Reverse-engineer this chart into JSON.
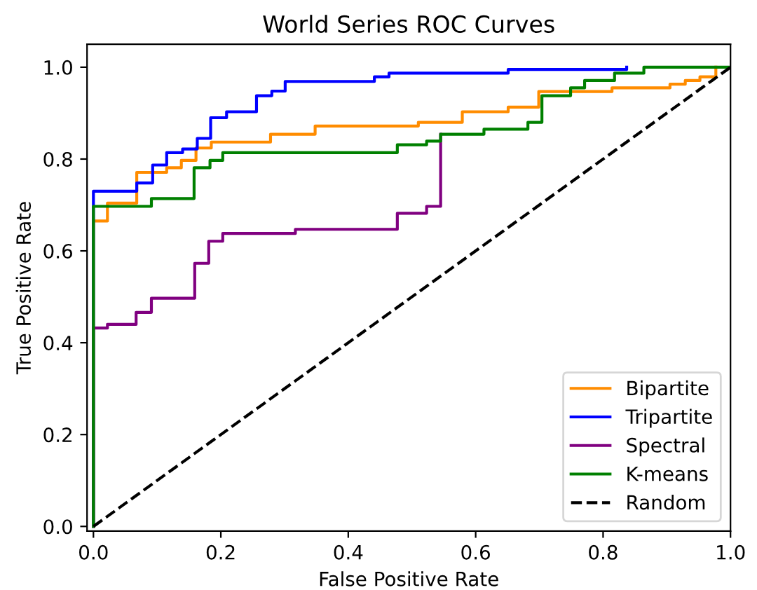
{
  "chart_data": {
    "type": "step",
    "title": "World Series ROC Curves",
    "xlabel": "False Positive Rate",
    "ylabel": "True Positive Rate",
    "xlim": [
      -0.01,
      1.0
    ],
    "ylim": [
      -0.01,
      1.05
    ],
    "xticks": [
      {
        "value": 0,
        "label": "0.0"
      },
      {
        "value": 0.2,
        "label": "0.2"
      },
      {
        "value": 0.4,
        "label": "0.4"
      },
      {
        "value": 0.6,
        "label": "0.6"
      },
      {
        "value": 0.8,
        "label": "0.8"
      },
      {
        "value": 1.0,
        "label": "1.0"
      }
    ],
    "yticks": [
      {
        "value": 0,
        "label": "0.0"
      },
      {
        "value": 0.2,
        "label": "0.2"
      },
      {
        "value": 0.4,
        "label": "0.4"
      },
      {
        "value": 0.6,
        "label": "0.6"
      },
      {
        "value": 0.8,
        "label": "0.8"
      },
      {
        "value": 1.0,
        "label": "1.0"
      }
    ],
    "grid": false,
    "legend": "bottom right",
    "marker": "none",
    "series": [
      {
        "name": "Bipartite",
        "color": "#ff8c00",
        "line_style": "solid",
        "x": [
          0,
          0,
          0.022,
          0.068,
          0.115,
          0.138,
          0.161,
          0.185,
          0.278,
          0.348,
          0.51,
          0.579,
          0.651,
          0.699,
          0.814,
          0.905,
          0.929,
          0.952,
          0.977
        ],
        "values": [
          0,
          0.665,
          0.704,
          0.771,
          0.781,
          0.797,
          0.824,
          0.837,
          0.854,
          0.872,
          0.88,
          0.903,
          0.913,
          0.947,
          0.955,
          0.963,
          0.971,
          0.979,
          1.0
        ]
      },
      {
        "name": "Tripartite",
        "color": "#0000ff",
        "line_style": "solid",
        "x": [
          0,
          0,
          0.068,
          0.093,
          0.115,
          0.14,
          0.163,
          0.184,
          0.209,
          0.256,
          0.28,
          0.301,
          0.441,
          0.464,
          0.651,
          0.837
        ],
        "values": [
          0,
          0.73,
          0.748,
          0.787,
          0.814,
          0.822,
          0.845,
          0.89,
          0.903,
          0.938,
          0.948,
          0.969,
          0.979,
          0.987,
          0.995,
          1.0
        ]
      },
      {
        "name": "Spectral",
        "color": "#800080",
        "line_style": "solid",
        "x": [
          0,
          0,
          0.022,
          0.067,
          0.091,
          0.159,
          0.181,
          0.203,
          0.317,
          0.477,
          0.523,
          0.545
        ],
        "values": [
          0,
          0.432,
          0.44,
          0.466,
          0.497,
          0.573,
          0.621,
          0.638,
          0.647,
          0.682,
          0.697,
          0.854
        ]
      },
      {
        "name": "K-means",
        "color": "#008000",
        "line_style": "solid",
        "x": [
          0,
          0,
          0.091,
          0.158,
          0.183,
          0.203,
          0.477,
          0.523,
          0.545,
          0.613,
          0.682,
          0.704,
          0.749,
          0.771,
          0.818,
          0.864,
          1.0
        ],
        "values": [
          0,
          0.697,
          0.714,
          0.781,
          0.797,
          0.814,
          0.831,
          0.839,
          0.854,
          0.865,
          0.88,
          0.938,
          0.955,
          0.971,
          0.987,
          1.0,
          1.0
        ]
      },
      {
        "name": "Random",
        "color": "#000000",
        "type": "line",
        "line_style": "dashed",
        "x": [
          0,
          1
        ],
        "values": [
          0,
          1
        ]
      }
    ]
  }
}
